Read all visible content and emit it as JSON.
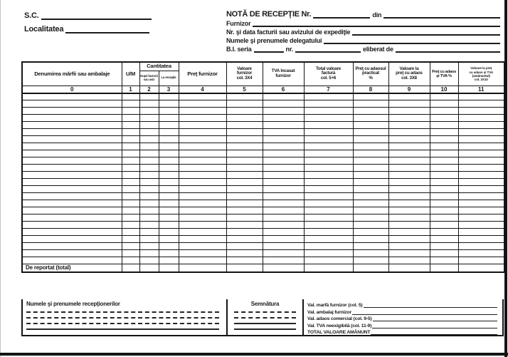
{
  "company": {
    "sc_label": "S.C.",
    "locality_label": "Localitatea"
  },
  "header": {
    "title": "NOTĂ DE RECEPŢIE Nr.",
    "din_label": "din",
    "furnizor_label": "Furnizor",
    "factura_label": "Nr. şi data facturii sau avizului de expediţie",
    "delegat_label": "Numele şi prenumele delegatului",
    "bi_seria_label": "B.I. seria",
    "nr_label": "nr.",
    "eliberat_label": "eliberat de"
  },
  "table": {
    "cantitatea_group": "Cantitatea",
    "columns": [
      {
        "label": "Denumirea mărfii sau ambalaje",
        "index": "0"
      },
      {
        "label": "U/M",
        "index": "1"
      },
      {
        "label": "După factură\nsau aviz",
        "index": "2"
      },
      {
        "label": "La recepţie",
        "index": "3"
      },
      {
        "label": "Preţ furnizor",
        "index": "4"
      },
      {
        "label": "Valoare\nfurnizor\ncol. 3X4",
        "index": "5"
      },
      {
        "label": "TVA încasat\nfurnizor",
        "index": "6"
      },
      {
        "label": "Total valoare\nfactură\ncol. 5+6",
        "index": "7"
      },
      {
        "label": "Preţ cu adaosul\npracticat\n%",
        "index": "8"
      },
      {
        "label": "Valoare la\npreţ cu adaos\ncol. 3X8",
        "index": "9"
      },
      {
        "label": "Preţ cu adaos\nşi TVA  %",
        "index": "10"
      },
      {
        "label": "Valoare la preţ\ncu adaos şi TVA\n(amănuntul)\ncol. 3X10",
        "index": "11"
      }
    ],
    "body_rows": 24,
    "report_label": "De reportat (total)"
  },
  "footer": {
    "receivers_title": "Numele şi prenumele recepţionerilor",
    "signature_title": "Semnătura",
    "totals": [
      {
        "label": "Val. marfă furnizor (col. 5)"
      },
      {
        "label": "Val. ambalaj furnizor"
      },
      {
        "label": "Val. adaos comercial (col. 9-5)"
      },
      {
        "label": "Val. TVA neexigibilă (col. 11-9)"
      },
      {
        "label": "TOTAL VALOARE AMĂNUNT"
      }
    ]
  }
}
